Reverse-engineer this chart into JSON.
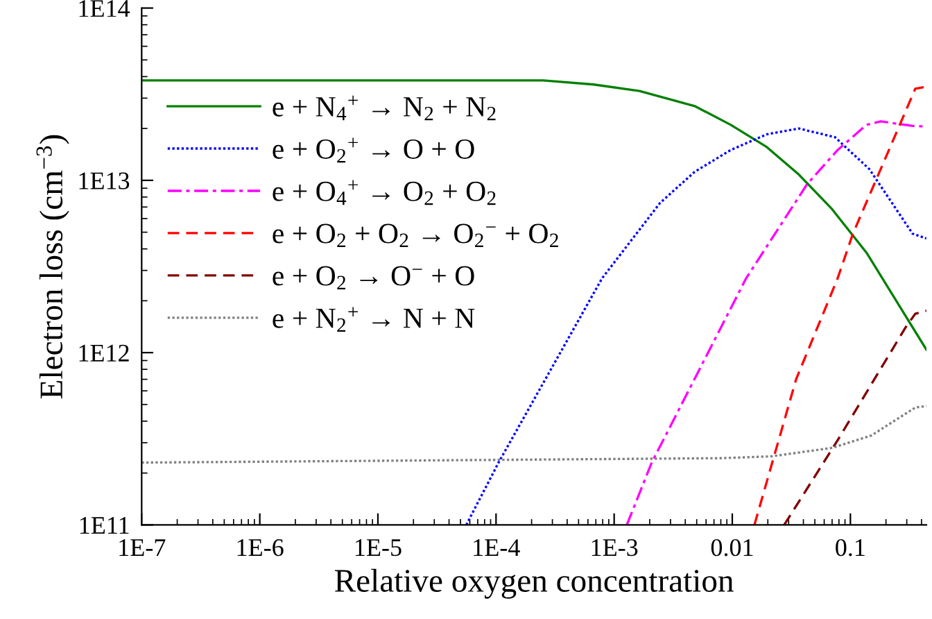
{
  "chart_data": {
    "type": "line",
    "xlabel": "Relative oxygen concentration",
    "ylabel": "Electron loss (cm$^{−3}$)",
    "log": "xy",
    "grid": false,
    "legend": "top left",
    "xlim": [
      1e-07,
      0.44
    ],
    "xticks": [
      {
        "value": 1e-07,
        "label": "1E-7"
      },
      {
        "value": 1e-06,
        "label": "1E-6"
      },
      {
        "value": 1e-05,
        "label": "1E-5"
      },
      {
        "value": 0.0001,
        "label": "1E-4"
      },
      {
        "value": 0.001,
        "label": "1E-3"
      },
      0.01,
      0.1
    ],
    "ylim": [
      100000000000.0,
      100000000000000.0
    ],
    "yticks": [
      {
        "value": 100000000000.0,
        "label": "1E11"
      },
      {
        "value": 1000000000000.0,
        "label": "1E12"
      },
      {
        "value": 10000000000000.0,
        "label": "1E13"
      },
      {
        "value": 100000000000000.0,
        "label": "1E14"
      }
    ],
    "series": [
      {
        "name": "e + N$_{4}$$^{+}$ → N$_{2}$ + N$_{2}$",
        "color": "#008000",
        "line_style": "solid",
        "x": [
          1e-07,
          0.00025,
          0.00067,
          0.00164,
          0.0048,
          0.0097,
          0.0196,
          0.0366,
          0.07,
          0.137,
          0.44
        ],
        "values": [
          38000000000000.0,
          38000000000000.0,
          36000000000000.0,
          33000000000000.0,
          27000000000000.0,
          21000000000000.0,
          15600000000000.0,
          10800000000000.0,
          6800000000000.0,
          3800000000000.0,
          1040000000000.0
        ]
      },
      {
        "name": "e + O$_{2}$$^{+}$ → O + O",
        "color": "#0000ff",
        "line_style": "dotted",
        "x": [
          5.6e-05,
          0.000105,
          0.00079,
          0.00245,
          0.0048,
          0.0097,
          0.0196,
          0.0366,
          0.074,
          0.145,
          0.336,
          0.44
        ],
        "values": [
          100000000000.0,
          230000000000.0,
          2700000000000.0,
          7400000000000.0,
          11200000000000.0,
          15000000000000.0,
          18500000000000.0,
          20000000000000.0,
          17800000000000.0,
          11600000000000.0,
          4900000000000.0,
          4600000000000.0
        ]
      },
      {
        "name": "e + O$_{4}$$^{+}$ → O$_{2}$ + O$_{2}$",
        "color": "#ff00ff",
        "line_style": "dashdot",
        "x": [
          0.00128,
          0.00208,
          0.0131,
          0.043,
          0.078,
          0.137,
          0.18,
          0.336,
          0.44
        ],
        "values": [
          100000000000.0,
          230000000000.0,
          2700000000000.0,
          9500000000000.0,
          15000000000000.0,
          21000000000000.0,
          22000000000000.0,
          20700000000000.0,
          20500000000000.0
        ]
      },
      {
        "name": "e + O$_{2}$ + O$_{2}$ → O$_{2}$$^{−}$ + O$_{2}$",
        "color": "#ff0000",
        "line_style": "dashed",
        "x": [
          0.0154,
          0.0347,
          0.078,
          0.105,
          0.354,
          0.44
        ],
        "values": [
          100000000000.0,
          700000000000.0,
          2700000000000.0,
          4900000000000.0,
          34000000000000.0,
          35000000000000.0
        ]
      },
      {
        "name": "e + O$_{2}$ → O$^{−}$ + O",
        "color": "#800000",
        "line_style": "dashed",
        "x": [
          0.0275,
          0.078,
          0.293,
          0.354,
          0.44
        ],
        "values": [
          100000000000.0,
          310000000000.0,
          1400000000000.0,
          1680000000000.0,
          1750000000000.0
        ]
      },
      {
        "name": "e + N$_{2}$$^{+}$ → N + N",
        "color": "#808080",
        "line_style": "dotted",
        "x": [
          1e-07,
          0.008,
          0.0215,
          0.07,
          0.15,
          0.354,
          0.44
        ],
        "values": [
          230000000000.0,
          244000000000.0,
          250000000000.0,
          280000000000.0,
          330000000000.0,
          480000000000.0,
          490000000000.0
        ]
      }
    ]
  }
}
